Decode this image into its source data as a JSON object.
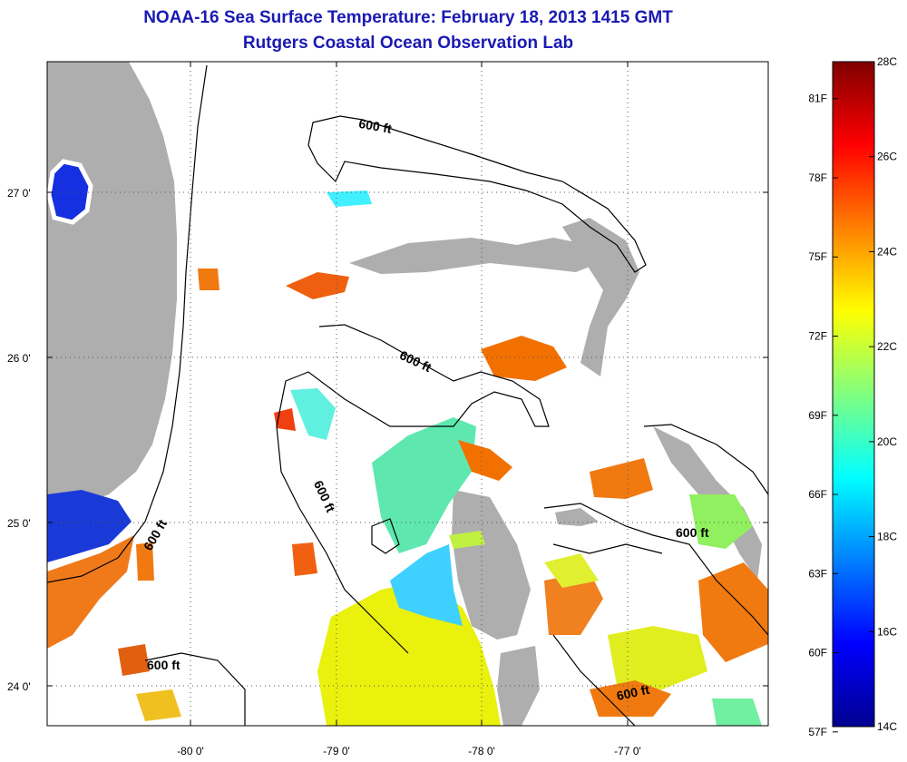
{
  "map": {
    "title": "NOAA-16 Sea Surface Temperature:  February 18, 2013 1415 GMT",
    "subtitle": "Rutgers Coastal Ocean Observation Lab",
    "lat_labels": [
      "27 0'",
      "26 0'",
      "25 0'",
      "24 0'"
    ],
    "lon_labels": [
      "-80 0'",
      "-79 0'",
      "-78 0'",
      "-77 0'"
    ],
    "contour_labels": [
      "600 ft",
      "600 ft",
      "600 ft",
      "600 ft",
      "600 ft",
      "600 ft"
    ],
    "colors": {
      "land": "#aeaeae",
      "cloud_mask": "#ffffff",
      "contour": "#000000",
      "title": "#1a1ab4"
    }
  },
  "colorbar": {
    "celsius_labels": [
      "28C",
      "26C",
      "24C",
      "22C",
      "20C",
      "18C",
      "16C",
      "14C"
    ],
    "fahrenheit_labels": [
      "81F",
      "78F",
      "75F",
      "72F",
      "69F",
      "66F",
      "63F",
      "60F",
      "57F"
    ],
    "range_celsius": [
      14,
      28
    ],
    "colormap": "jet"
  }
}
